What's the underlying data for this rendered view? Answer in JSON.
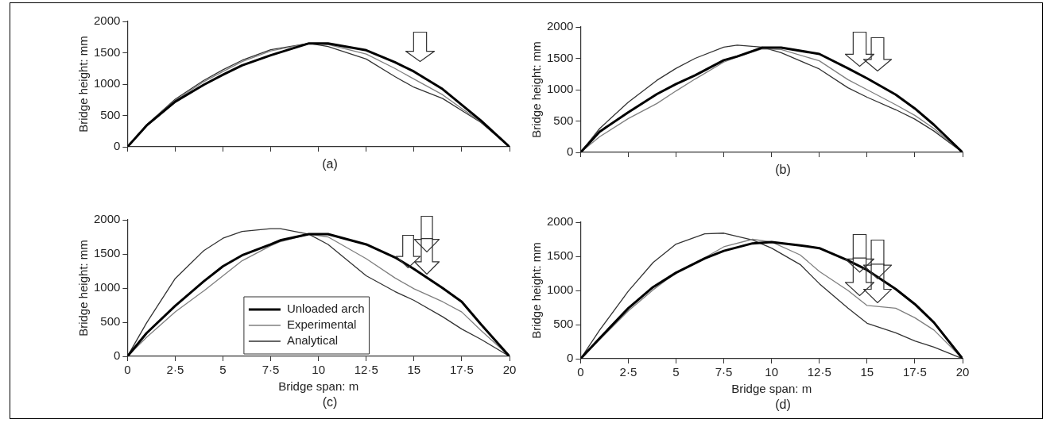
{
  "chart_data": [
    {
      "type": "line",
      "ylabel": "Bridge height: mm",
      "xlim": [
        0,
        20
      ],
      "xticks": [
        0,
        2.5,
        5,
        7.5,
        10,
        12.5,
        15,
        17.5,
        20
      ],
      "ylim": [
        0,
        2000
      ],
      "yticks": [
        0,
        500,
        1000,
        1500,
        2000
      ],
      "tick_labels": "y",
      "annotations": [
        "(a)"
      ],
      "series": [
        {
          "color": "#000000",
          "x": [
            0,
            1,
            2.5,
            4,
            5,
            6,
            7.5,
            9.5,
            10.5,
            12.5,
            14,
            15,
            16.5,
            17.5,
            18.5,
            20
          ],
          "values": [
            0,
            340,
            720,
            990,
            1150,
            1300,
            1460,
            1650,
            1650,
            1540,
            1350,
            1200,
            920,
            670,
            420,
            0
          ]
        },
        {
          "color": "#7f7f7f",
          "x": [
            0,
            1,
            2.5,
            4,
            5,
            6,
            7.5,
            9.5,
            10.5,
            12.5,
            14,
            15,
            16.5,
            17.5,
            18.5,
            20
          ],
          "values": [
            0,
            350,
            740,
            1040,
            1200,
            1360,
            1530,
            1650,
            1630,
            1480,
            1250,
            1080,
            830,
            610,
            400,
            0
          ]
        },
        {
          "color": "#333333",
          "x": [
            0,
            1,
            2.5,
            4,
            5,
            6,
            7.5,
            9.5,
            10.5,
            12.5,
            14,
            15,
            16.5,
            17.5,
            18.5,
            20
          ],
          "values": [
            0,
            350,
            760,
            1060,
            1230,
            1380,
            1550,
            1650,
            1600,
            1400,
            1120,
            950,
            770,
            580,
            390,
            0
          ]
        }
      ]
    },
    {
      "type": "line",
      "ylabel": "Bridge height: mm",
      "xlim": [
        0,
        20
      ],
      "xticks": [
        0,
        2.5,
        5,
        7.5,
        10,
        12.5,
        15,
        17.5,
        20
      ],
      "ylim": [
        0,
        2000
      ],
      "yticks": [
        0,
        500,
        1000,
        1500,
        2000
      ],
      "tick_labels": "y",
      "annotations": [
        "(b)"
      ],
      "series": [
        {
          "color": "#000000",
          "x": [
            0,
            1,
            2.5,
            4,
            5,
            6,
            7.5,
            8.2,
            9.5,
            10.5,
            12.5,
            14,
            15,
            16.5,
            17.5,
            18.5,
            20
          ],
          "values": [
            0,
            330,
            640,
            930,
            1090,
            1230,
            1470,
            1530,
            1670,
            1670,
            1570,
            1340,
            1180,
            920,
            700,
            440,
            0
          ]
        },
        {
          "color": "#7f7f7f",
          "x": [
            0,
            1,
            2.5,
            4,
            5,
            6,
            7.5,
            8.2,
            9.5,
            10.5,
            12.5,
            14,
            15,
            16.5,
            17.5,
            18.5,
            20
          ],
          "values": [
            0,
            250,
            540,
            780,
            980,
            1170,
            1440,
            1520,
            1650,
            1640,
            1460,
            1160,
            1000,
            760,
            590,
            380,
            0
          ]
        },
        {
          "color": "#333333",
          "x": [
            0,
            1,
            2.5,
            4,
            5,
            6,
            7.5,
            8.2,
            9.5,
            10.5,
            12.5,
            14,
            15,
            16.5,
            17.5,
            18.5,
            20
          ],
          "values": [
            0,
            380,
            800,
            1150,
            1340,
            1500,
            1680,
            1710,
            1680,
            1590,
            1330,
            1030,
            880,
            680,
            530,
            340,
            0
          ]
        }
      ]
    },
    {
      "type": "line",
      "xlabel": "Bridge span: m",
      "ylabel": "Bridge height: mm",
      "xlim": [
        0,
        20
      ],
      "xticks": [
        0,
        {
          "value": 2.5,
          "label": "2·5"
        },
        5,
        {
          "value": 7.5,
          "label": "7·5"
        },
        10,
        {
          "value": 12.5,
          "label": "12·5"
        },
        15,
        {
          "value": 17.5,
          "label": "17·5"
        },
        20
      ],
      "ylim": [
        0,
        2000
      ],
      "yticks": [
        0,
        500,
        1000,
        1500,
        2000
      ],
      "legend": "bottom",
      "annotations": [
        "(c)"
      ],
      "series": [
        {
          "name": "Unloaded arch",
          "color": "#000000",
          "x": [
            0,
            1,
            2.5,
            4,
            5,
            6,
            7.5,
            8,
            9.5,
            10.5,
            12.5,
            14,
            15,
            16.5,
            17.5,
            18.5,
            20
          ],
          "values": [
            0,
            340,
            740,
            1100,
            1320,
            1480,
            1640,
            1700,
            1790,
            1790,
            1640,
            1450,
            1280,
            1000,
            800,
            470,
            0
          ]
        },
        {
          "name": "Experimental",
          "color": "#7f7f7f",
          "x": [
            0,
            1,
            2.5,
            4,
            5,
            6,
            7.5,
            8,
            9.5,
            10.5,
            12.5,
            14,
            15,
            16.5,
            17.5,
            18.5,
            20
          ],
          "values": [
            0,
            280,
            650,
            960,
            1180,
            1400,
            1620,
            1680,
            1790,
            1750,
            1430,
            1150,
            990,
            800,
            650,
            380,
            0
          ]
        },
        {
          "name": "Analytical",
          "color": "#333333",
          "x": [
            0,
            1,
            2.5,
            4,
            5,
            6,
            7.5,
            8,
            9.5,
            10.5,
            12.5,
            14,
            15,
            16.5,
            17.5,
            18.5,
            20
          ],
          "values": [
            0,
            490,
            1140,
            1550,
            1730,
            1830,
            1870,
            1870,
            1790,
            1640,
            1180,
            950,
            820,
            580,
            400,
            250,
            0
          ]
        }
      ]
    },
    {
      "type": "line",
      "xlabel": "Bridge span: m",
      "ylabel": "Bridge height: mm",
      "xlim": [
        0,
        20
      ],
      "xticks": [
        0,
        {
          "value": 2.5,
          "label": "2·5"
        },
        5,
        {
          "value": 7.5,
          "label": "7·5"
        },
        10,
        {
          "value": 12.5,
          "label": "12·5"
        },
        15,
        {
          "value": 17.5,
          "label": "17·5"
        },
        20
      ],
      "ylim": [
        0,
        2000
      ],
      "yticks": [
        0,
        500,
        1000,
        1500,
        2000
      ],
      "annotations": [
        "(d)"
      ],
      "series": [
        {
          "color": "#000000",
          "x": [
            0,
            1,
            2.5,
            3.8,
            5,
            6.5,
            7.5,
            9,
            10,
            11.5,
            12.5,
            14,
            15,
            16.5,
            17.5,
            18.5,
            20
          ],
          "values": [
            0,
            300,
            740,
            1050,
            1260,
            1470,
            1580,
            1690,
            1710,
            1660,
            1620,
            1440,
            1300,
            1020,
            800,
            530,
            0
          ]
        },
        {
          "color": "#7f7f7f",
          "x": [
            0,
            1,
            2.5,
            3.8,
            5,
            6.5,
            7.5,
            9,
            10,
            11.5,
            12.5,
            14,
            15,
            16.5,
            17.5,
            18.5,
            20
          ],
          "values": [
            0,
            280,
            700,
            1010,
            1260,
            1480,
            1640,
            1750,
            1710,
            1520,
            1280,
            1000,
            780,
            740,
            600,
            420,
            0
          ]
        },
        {
          "color": "#333333",
          "x": [
            0,
            1,
            2.5,
            3.8,
            5,
            6.5,
            7.5,
            9,
            10,
            11.5,
            12.5,
            14,
            15,
            16.5,
            17.5,
            18.5,
            20
          ],
          "values": [
            0,
            420,
            990,
            1410,
            1680,
            1830,
            1840,
            1740,
            1620,
            1380,
            1100,
            740,
            520,
            380,
            260,
            170,
            0
          ]
        }
      ]
    }
  ]
}
